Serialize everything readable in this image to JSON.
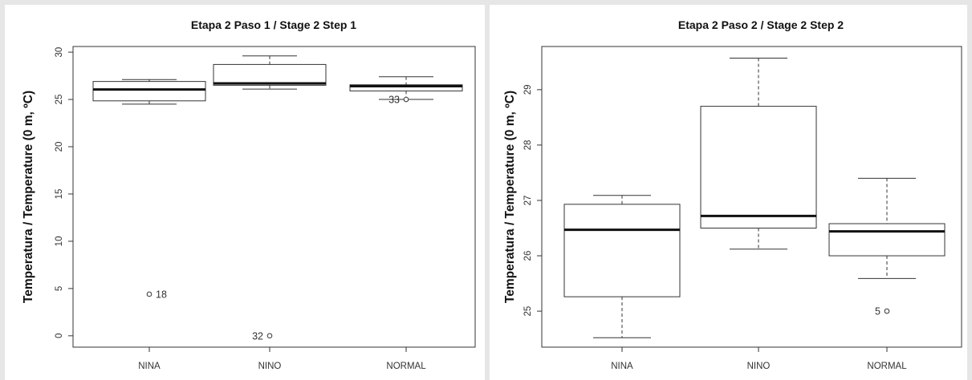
{
  "chart_data": [
    {
      "type": "box",
      "title": "Etapa 2 Paso 1 / Stage 2 Step 1",
      "ylabel": "Temperatura / Temperature (0 m, ºC)",
      "xlabel": "",
      "categories": [
        "NINA",
        "NINO",
        "NORMAL"
      ],
      "ylim": [
        -1.2,
        30.6
      ],
      "yticks": [
        0,
        5,
        10,
        15,
        20,
        25,
        30
      ],
      "grid": false,
      "boxes": [
        {
          "category": "NINA",
          "whisker_low": 24.5,
          "q1": 24.85,
          "median": 26.05,
          "q3": 26.9,
          "whisker_high": 27.1
        },
        {
          "category": "NINO",
          "whisker_low": 26.1,
          "q1": 26.5,
          "median": 26.7,
          "q3": 28.7,
          "whisker_high": 29.6
        },
        {
          "category": "NORMAL",
          "whisker_low": 25.0,
          "q1": 25.9,
          "median": 26.4,
          "q3": 26.55,
          "whisker_high": 27.4
        }
      ],
      "outliers": [
        {
          "category": "NINA",
          "value": 4.4,
          "label": "18",
          "label_side": "right"
        },
        {
          "category": "NINO",
          "value": 0.0,
          "label": "32",
          "label_side": "left"
        },
        {
          "category": "NORMAL",
          "value": 25.0,
          "label": "33",
          "label_side": "left"
        }
      ]
    },
    {
      "type": "box",
      "title": "Etapa 2 Paso 2 / Stage 2 Step 2",
      "ylabel": "Temperatura / Temperature (0 m, ºC)",
      "xlabel": "",
      "categories": [
        "NINA",
        "NINO",
        "NORMAL"
      ],
      "ylim": [
        24.35,
        29.78
      ],
      "yticks": [
        25,
        26,
        27,
        28,
        29
      ],
      "grid": false,
      "boxes": [
        {
          "category": "NINA",
          "whisker_low": 24.52,
          "q1": 25.26,
          "median": 26.47,
          "q3": 26.93,
          "whisker_high": 27.09
        },
        {
          "category": "NINO",
          "whisker_low": 26.12,
          "q1": 26.5,
          "median": 26.72,
          "q3": 28.7,
          "whisker_high": 29.57
        },
        {
          "category": "NORMAL",
          "whisker_low": 25.59,
          "q1": 26.0,
          "median": 26.44,
          "q3": 26.58,
          "whisker_high": 27.4
        }
      ],
      "outliers": [
        {
          "category": "NORMAL",
          "value": 25.0,
          "label": "5",
          "label_side": "left"
        }
      ]
    }
  ]
}
